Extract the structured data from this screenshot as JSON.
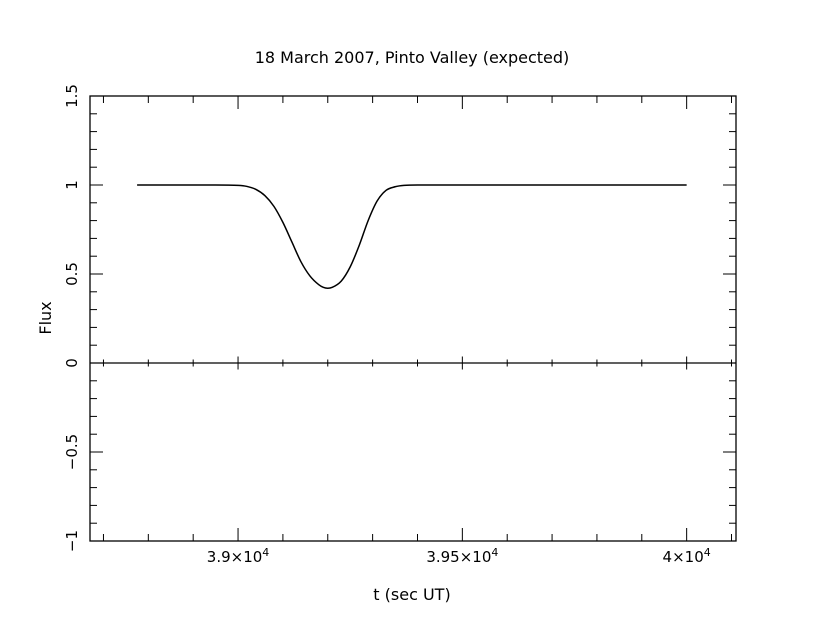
{
  "chart_data": {
    "type": "line",
    "title": "18 March 2007, Pinto Valley (expected)",
    "xlabel": "t (sec UT)",
    "ylabel": "Flux",
    "xlim": [
      38670,
      40110
    ],
    "ylim": [
      -1,
      1.5
    ],
    "grid": false,
    "x_ticks": [
      {
        "value": 39000,
        "mantissa": "3.9",
        "times": "×10",
        "exp": "4"
      },
      {
        "value": 39500,
        "mantissa": "3.95",
        "times": "×10",
        "exp": "4"
      },
      {
        "value": 40000,
        "mantissa": "4",
        "times": "×10",
        "exp": "4"
      }
    ],
    "y_ticks": [
      {
        "value": -1,
        "label": "−1"
      },
      {
        "value": -0.5,
        "label": "−0.5"
      },
      {
        "value": 0,
        "label": "0"
      },
      {
        "value": 0.5,
        "label": "0.5"
      },
      {
        "value": 1,
        "label": "1"
      },
      {
        "value": 1.5,
        "label": "1.5"
      }
    ],
    "zero_line": true,
    "series": [
      {
        "x": [
          38775,
          38800,
          38850,
          38900,
          38950,
          39000,
          39020,
          39040,
          39060,
          39080,
          39100,
          39120,
          39140,
          39160,
          39180,
          39190,
          39200,
          39210,
          39230,
          39250,
          39270,
          39290,
          39310,
          39330,
          39350,
          39370,
          39400,
          39450,
          39500,
          39600,
          39700,
          39800,
          39900,
          40000
        ],
        "y": [
          1.0,
          1.0,
          1.0,
          1.0,
          1.0,
          0.998,
          0.992,
          0.975,
          0.94,
          0.88,
          0.79,
          0.68,
          0.57,
          0.49,
          0.44,
          0.425,
          0.42,
          0.425,
          0.46,
          0.54,
          0.66,
          0.8,
          0.91,
          0.97,
          0.99,
          0.998,
          1.0,
          1.0,
          1.0,
          1.0,
          1.0,
          1.0,
          1.0,
          1.0
        ]
      }
    ]
  }
}
